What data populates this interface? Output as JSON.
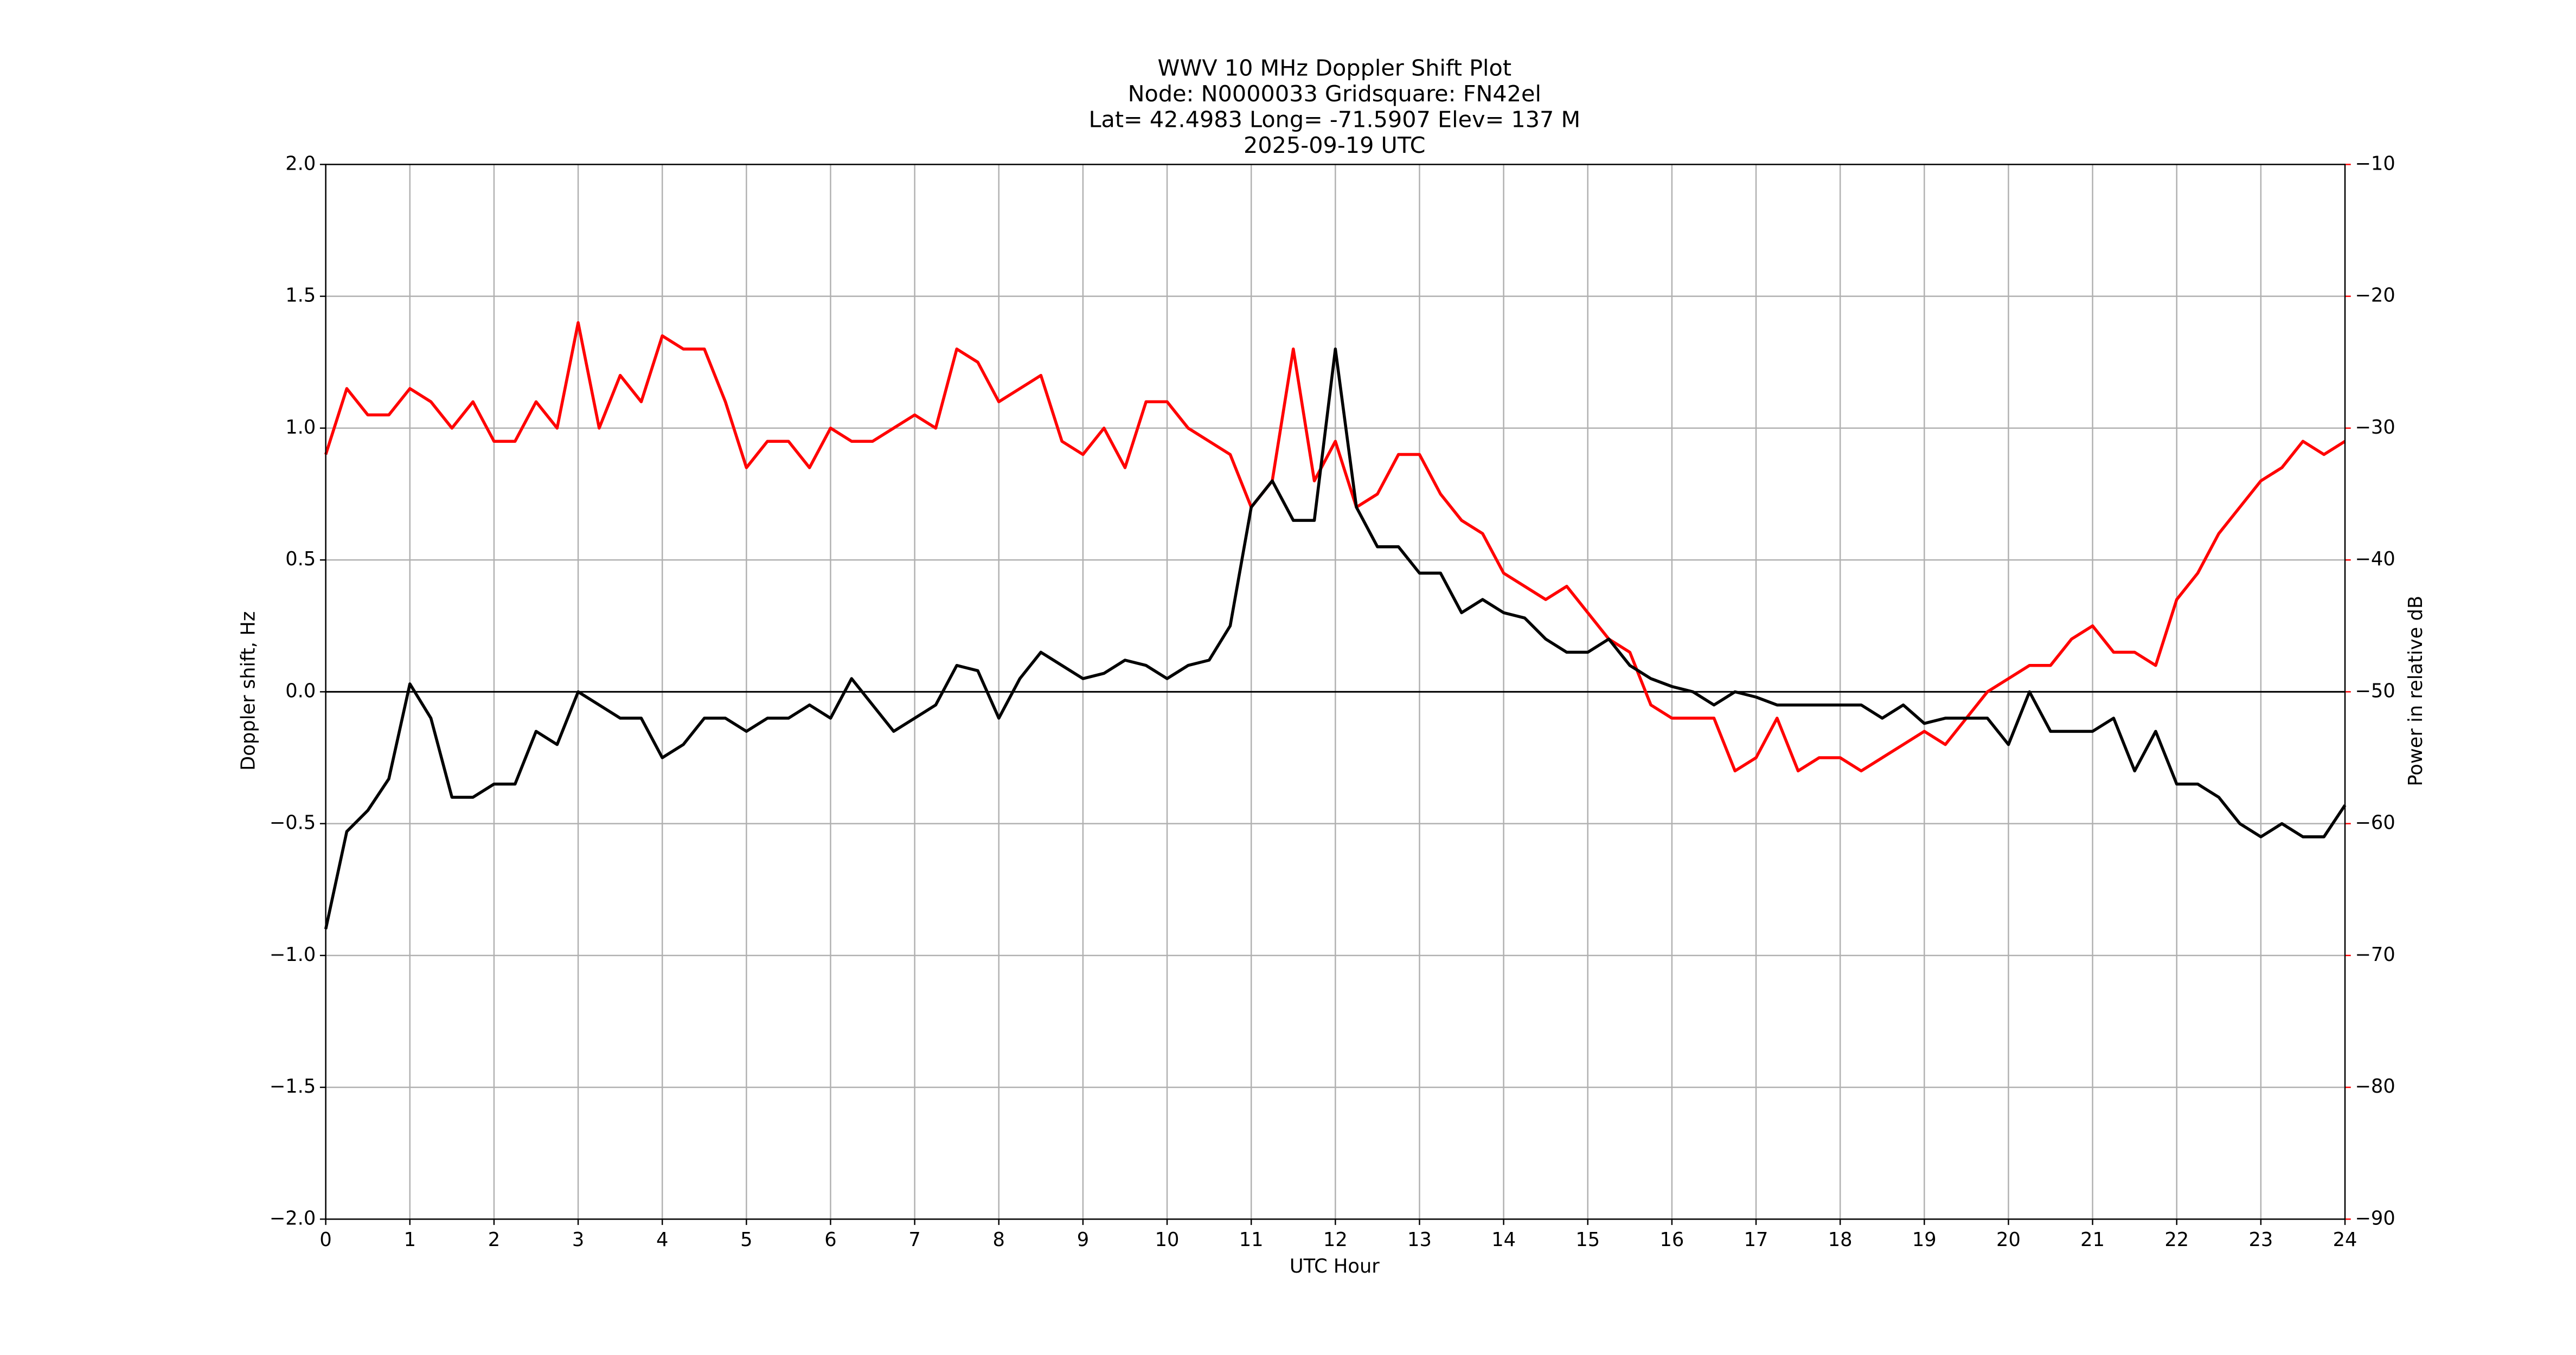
{
  "chart_data": {
    "type": "line",
    "title": [
      "WWV 10 MHz Doppler Shift Plot",
      "Node:  N0000033     Gridsquare:  FN42el",
      "Lat= 42.4983    Long= -71.5907    Elev= 137 M",
      "2025-09-19  UTC"
    ],
    "xlabel": "UTC Hour",
    "ylabel": "Doppler shift, Hz",
    "y2label": "Power in relative dB",
    "grid": true,
    "hline": 0,
    "xlim": [
      0,
      24
    ],
    "xticks": [
      0,
      1,
      2,
      3,
      4,
      5,
      6,
      7,
      8,
      9,
      10,
      11,
      12,
      13,
      14,
      15,
      16,
      17,
      18,
      19,
      20,
      21,
      22,
      23,
      24
    ],
    "ylim": [
      -2,
      2
    ],
    "yticks": [
      {
        "value": -2,
        "label": "−2.0"
      },
      {
        "value": -1.5,
        "label": "−1.5"
      },
      {
        "value": -1,
        "label": "−1.0"
      },
      {
        "value": -0.5,
        "label": "−0.5"
      },
      {
        "value": 0,
        "label": "0.0"
      },
      0.5,
      {
        "value": 1,
        "label": "1.0"
      },
      1.5,
      {
        "value": 2,
        "label": "2.0"
      }
    ],
    "y2lim": [
      -90,
      -10
    ],
    "y2ticks": [
      {
        "value": -90,
        "label": "−90"
      },
      {
        "value": -80,
        "label": "−80"
      },
      {
        "value": -70,
        "label": "−70"
      },
      {
        "value": -60,
        "label": "−60"
      },
      {
        "value": -50,
        "label": "−50"
      },
      {
        "value": -40,
        "label": "−40"
      },
      {
        "value": -30,
        "label": "−30"
      },
      {
        "value": -20,
        "label": "−20"
      },
      {
        "value": -10,
        "label": "−10"
      }
    ],
    "y2color": "#ff0000",
    "x": [
      0,
      0.25,
      0.5,
      0.75,
      1,
      1.25,
      1.5,
      1.75,
      2,
      2.25,
      2.5,
      2.75,
      3,
      3.25,
      3.5,
      3.75,
      4,
      4.25,
      4.5,
      4.75,
      5,
      5.25,
      5.5,
      5.75,
      6,
      6.25,
      6.5,
      6.75,
      7,
      7.25,
      7.5,
      7.75,
      8,
      8.25,
      8.5,
      8.75,
      9,
      9.25,
      9.5,
      9.75,
      10,
      10.25,
      10.5,
      10.75,
      11,
      11.25,
      11.5,
      11.75,
      12,
      12.25,
      12.5,
      12.75,
      13,
      13.25,
      13.5,
      13.75,
      14,
      14.25,
      14.5,
      14.75,
      15,
      15.25,
      15.5,
      15.75,
      16,
      16.25,
      16.5,
      16.75,
      17,
      17.25,
      17.5,
      17.75,
      18,
      18.25,
      18.5,
      18.75,
      19,
      19.25,
      19.5,
      19.75,
      20,
      20.25,
      20.5,
      20.75,
      21,
      21.25,
      21.5,
      21.75,
      22,
      22.25,
      22.5,
      22.75,
      23,
      23.25,
      23.5,
      23.75,
      24
    ],
    "series": [
      {
        "color": "#ff0000",
        "axis": "y2",
        "values": [
          -32,
          -27,
          -29,
          -29,
          -27,
          -28,
          -30,
          -28,
          -31,
          -31,
          -28,
          -30,
          -22,
          -30,
          -26,
          -28,
          -23,
          -24,
          -24,
          -28,
          -33,
          -31,
          -31,
          -33,
          -30,
          -31,
          -31,
          -30,
          -29,
          -30,
          -24,
          -25,
          -28,
          -27,
          -26,
          -31,
          -32,
          -30,
          -33,
          -28,
          -28,
          -30,
          -31,
          -32,
          -36,
          -34,
          -24,
          -34,
          -31,
          -36,
          -35,
          -32,
          -32,
          -35,
          -37,
          -38,
          -41,
          -42,
          -43,
          -42,
          -44,
          -46,
          -47,
          -51,
          -52,
          -52,
          -52,
          -56,
          -55,
          -52,
          -56,
          -55,
          -55,
          -56,
          -55,
          -54,
          -53,
          -54,
          -52,
          -50,
          -49,
          -48,
          -48,
          -46,
          -45,
          -47,
          -47,
          -48,
          -43,
          -41,
          -38,
          -36,
          -34,
          -33,
          -31,
          -32,
          -31
        ]
      },
      {
        "color": "#000000",
        "values": [
          -0.9,
          -0.53,
          -0.45,
          -0.33,
          0.03,
          -0.1,
          -0.4,
          -0.4,
          -0.35,
          -0.35,
          -0.15,
          -0.2,
          0,
          -0.05,
          -0.1,
          -0.1,
          -0.25,
          -0.2,
          -0.1,
          -0.1,
          -0.15,
          -0.1,
          -0.1,
          -0.05,
          -0.1,
          0.05,
          -0.05,
          -0.15,
          -0.1,
          -0.05,
          0.1,
          0.08,
          -0.1,
          0.05,
          0.15,
          0.1,
          0.05,
          0.07,
          0.12,
          0.1,
          0.05,
          0.1,
          0.12,
          0.25,
          0.7,
          0.8,
          0.65,
          0.65,
          1.3,
          0.7,
          0.55,
          0.55,
          0.45,
          0.45,
          0.3,
          0.35,
          0.3,
          0.28,
          0.2,
          0.15,
          0.15,
          0.2,
          0.1,
          0.05,
          0.02,
          0,
          -0.05,
          0,
          -0.02,
          -0.05,
          -0.05,
          -0.05,
          -0.05,
          -0.05,
          -0.1,
          -0.05,
          -0.12,
          -0.1,
          -0.1,
          -0.1,
          -0.2,
          0,
          -0.15,
          -0.15,
          -0.15,
          -0.1,
          -0.3,
          -0.15,
          -0.35,
          -0.35,
          -0.4,
          -0.5,
          -0.55,
          -0.5,
          -0.55,
          -0.55,
          -0.43
        ]
      }
    ]
  }
}
